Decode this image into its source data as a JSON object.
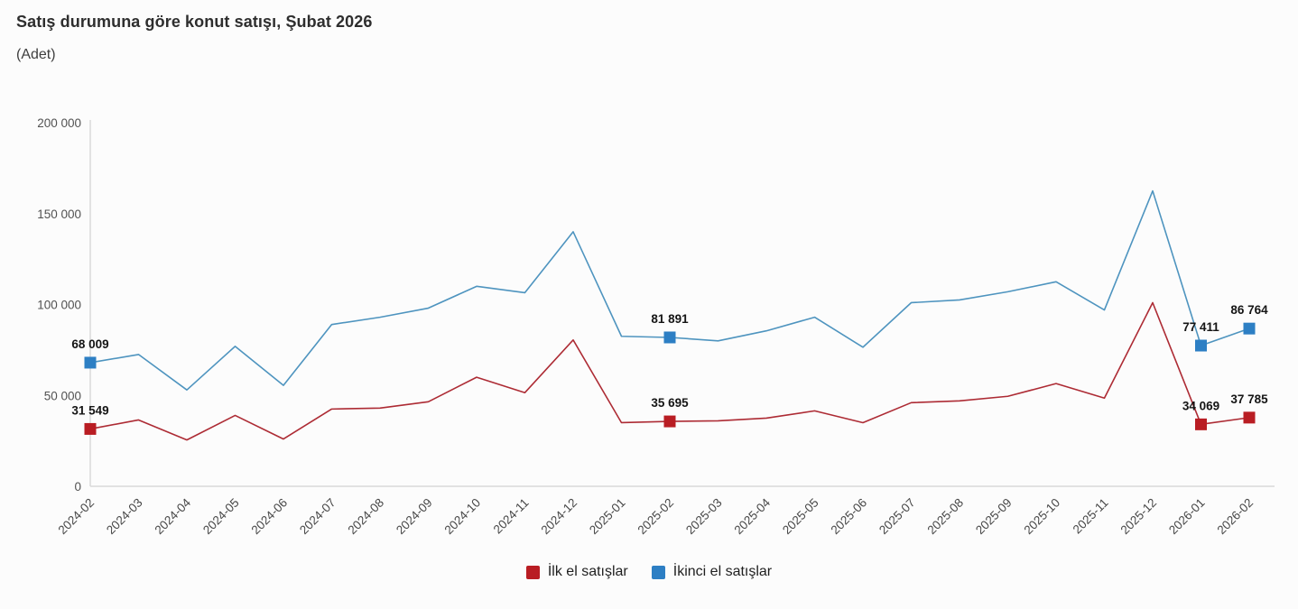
{
  "header": {
    "title": "Satış durumuna göre konut satışı, Şubat 2026",
    "subtitle": "(Adet)"
  },
  "legend": {
    "items": [
      {
        "label": "İlk el satışlar",
        "color": "#b91d23"
      },
      {
        "label": "İkinci el satışlar",
        "color": "#2d7fc4"
      }
    ]
  },
  "axes": {
    "line_color": "#d9d9d9",
    "tick_label_color": "#4d4d4d"
  },
  "chart_data": {
    "type": "line",
    "title": "Satış durumuna göre konut satışı, Şubat 2026",
    "subtitle": "(Adet)",
    "xlabel": "",
    "ylabel": "Adet",
    "grid": false,
    "legend_position": "bottom",
    "ylim": [
      0,
      200000
    ],
    "ytick_values": [
      0,
      50000,
      100000,
      150000,
      200000
    ],
    "ytick_labels": [
      "0",
      "50 000",
      "100 000",
      "150 000",
      "200 000"
    ],
    "categories": [
      "2024-02",
      "2024-03",
      "2024-04",
      "2024-05",
      "2024-06",
      "2024-07",
      "2024-08",
      "2024-09",
      "2024-10",
      "2024-11",
      "2024-12",
      "2025-01",
      "2025-02",
      "2025-03",
      "2025-04",
      "2025-05",
      "2025-06",
      "2025-07",
      "2025-08",
      "2025-09",
      "2025-10",
      "2025-11",
      "2025-12",
      "2026-01",
      "2026-02"
    ],
    "series": [
      {
        "name": "İlk el satışlar",
        "line_color": "#ad2b34",
        "marker_color": "#b91d23",
        "values": [
          31549,
          36500,
          25500,
          39000,
          26000,
          42500,
          43000,
          46500,
          60000,
          51500,
          80500,
          35000,
          35695,
          36000,
          37500,
          41500,
          35000,
          46000,
          47000,
          49500,
          56500,
          48500,
          101000,
          34069,
          37785
        ],
        "labeled_indices": [
          0,
          12,
          23,
          24
        ],
        "labels": {
          "0": "31 549",
          "12": "35 695",
          "23": "34 069",
          "24": "37 785"
        }
      },
      {
        "name": "İkinci el satışlar",
        "line_color": "#4e94bf",
        "marker_color": "#2d7fc4",
        "values": [
          68009,
          72500,
          53000,
          77000,
          55500,
          89000,
          93000,
          98000,
          110000,
          106500,
          140000,
          82500,
          81891,
          80000,
          85500,
          93000,
          76500,
          101000,
          102500,
          107000,
          112500,
          97000,
          162500,
          77411,
          86764
        ],
        "labeled_indices": [
          0,
          12,
          23,
          24
        ],
        "labels": {
          "0": "68 009",
          "12": "81 891",
          "23": "77 411",
          "24": "86 764"
        }
      }
    ]
  }
}
